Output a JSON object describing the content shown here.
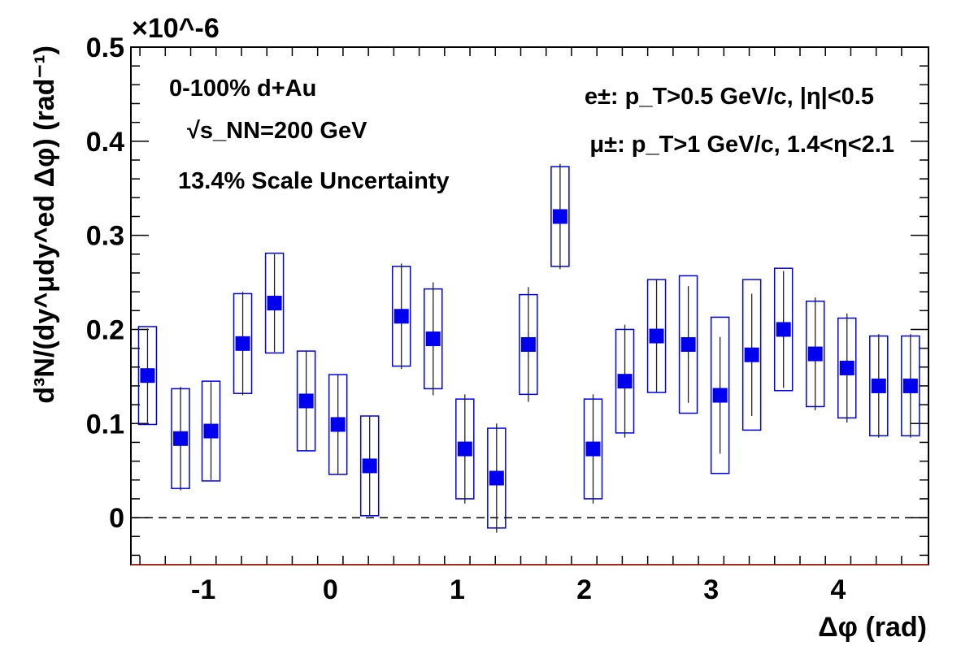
{
  "chart_data": {
    "type": "scatter",
    "xlabel": "Δφ (rad)",
    "ylabel": "d³N/(dy^μdy^ed Δφ) (rad⁻¹)",
    "y_multiplier": "×10^-6",
    "xlim": [
      -1.571,
      4.712
    ],
    "ylim": [
      -0.05,
      0.5
    ],
    "x_ticks": [
      "-1",
      "0",
      "1",
      "2",
      "3",
      "4"
    ],
    "y_ticks": [
      "0",
      "0.1",
      "0.2",
      "0.3",
      "0.4",
      "0.5"
    ],
    "reference_line": {
      "y": 0,
      "style": "dashed"
    },
    "marker_color": "#0000ee",
    "annotations": {
      "centrality": "0-100% d+Au",
      "energy": "√s_NN=200 GeV",
      "scale_uncertainty": "13.4% Scale Uncertainty",
      "electron_cut": "e±: p_T>0.5 GeV/c, |η|<0.5",
      "muon_cut": "μ±: p_T>1 GeV/c, 1.4<η<2.1"
    },
    "series": [
      {
        "x": [
          -1.44,
          -1.18,
          -0.94,
          -0.69,
          -0.44,
          -0.19,
          0.06,
          0.31,
          0.56,
          0.81,
          1.06,
          1.31,
          1.56,
          1.81,
          2.07,
          2.32,
          2.57,
          2.82,
          3.07,
          3.32,
          3.57,
          3.82,
          4.07,
          4.32,
          4.57
        ],
        "y": [
          0.151,
          0.084,
          0.092,
          0.185,
          0.228,
          0.124,
          0.099,
          0.055,
          0.214,
          0.19,
          0.073,
          0.042,
          0.184,
          0.32,
          0.073,
          0.145,
          0.193,
          0.184,
          0.13,
          0.173,
          0.2,
          0.174,
          0.159,
          0.14,
          0.14
        ],
        "stat_err": [
          0.05,
          0.055,
          0.052,
          0.055,
          0.052,
          0.053,
          0.053,
          0.053,
          0.056,
          0.06,
          0.058,
          0.058,
          0.061,
          0.056,
          0.058,
          0.06,
          0.06,
          0.062,
          0.062,
          0.065,
          0.062,
          0.06,
          0.058,
          0.055,
          0.055
        ],
        "sys_err": [
          0.052,
          0.053,
          0.053,
          0.053,
          0.053,
          0.053,
          0.053,
          0.053,
          0.053,
          0.053,
          0.053,
          0.053,
          0.053,
          0.053,
          0.053,
          0.055,
          0.06,
          0.073,
          0.083,
          0.08,
          0.065,
          0.056,
          0.053,
          0.053,
          0.053
        ]
      }
    ]
  }
}
